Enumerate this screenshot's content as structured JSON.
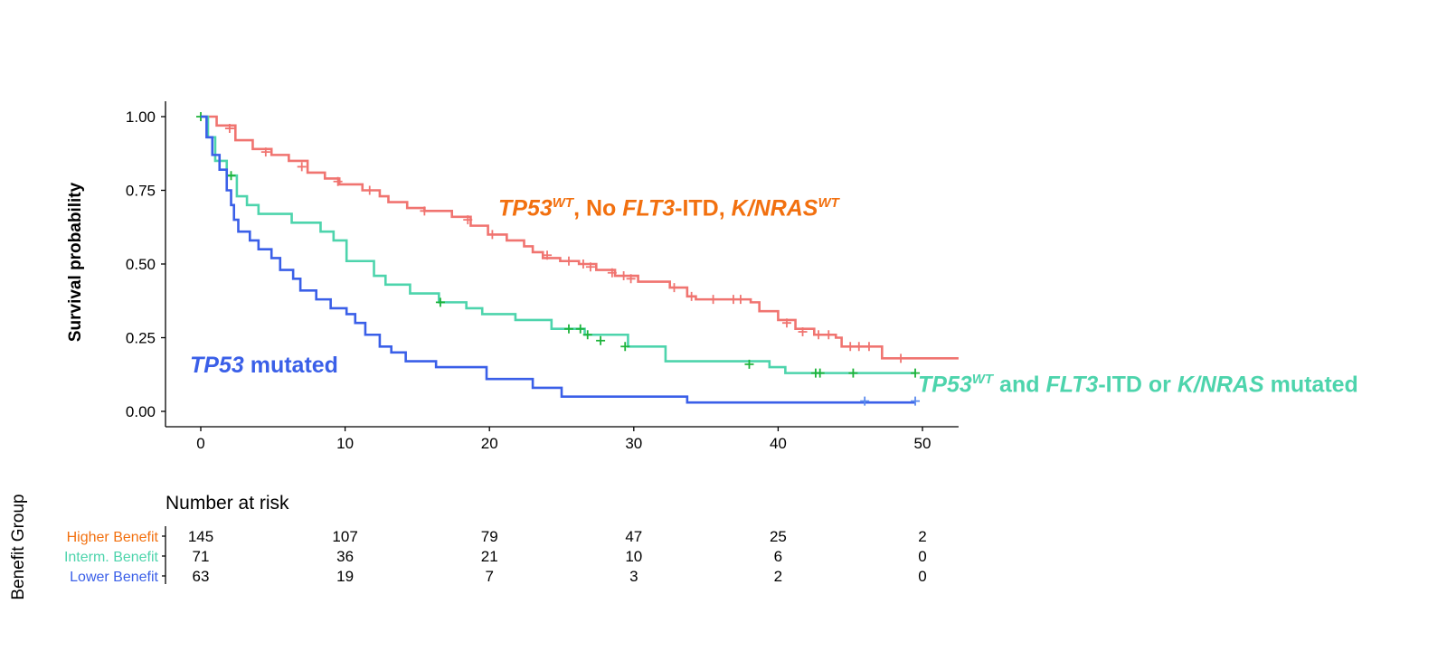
{
  "chart_data": {
    "type": "line",
    "subtype": "kaplan-meier",
    "ylabel": "Survival probability",
    "xlabel": "",
    "xlim": [
      -2,
      52.5
    ],
    "ylim": [
      0,
      1.05
    ],
    "x_ticks": [
      0,
      10,
      20,
      30,
      40,
      50
    ],
    "y_ticks": [
      0,
      0.25,
      0.5,
      0.75,
      1.0
    ],
    "y_tick_labels": [
      "0.00",
      "0.25",
      "0.50",
      "0.75",
      "1.00"
    ],
    "grid": false,
    "series": [
      {
        "name": "Higher Benefit",
        "color": "#F07470",
        "censor_color": "#F07470",
        "steps": [
          [
            0,
            1.0
          ],
          [
            1.1,
            0.97
          ],
          [
            2.4,
            0.92
          ],
          [
            3.6,
            0.89
          ],
          [
            4.9,
            0.87
          ],
          [
            6.1,
            0.85
          ],
          [
            7.4,
            0.81
          ],
          [
            8.6,
            0.79
          ],
          [
            9.6,
            0.77
          ],
          [
            11.2,
            0.75
          ],
          [
            12.4,
            0.73
          ],
          [
            13,
            0.71
          ],
          [
            14.3,
            0.69
          ],
          [
            15.5,
            0.68
          ],
          [
            17.4,
            0.66
          ],
          [
            18.7,
            0.63
          ],
          [
            19.9,
            0.6
          ],
          [
            21.2,
            0.58
          ],
          [
            22.4,
            0.56
          ],
          [
            23,
            0.54
          ],
          [
            23.7,
            0.52
          ],
          [
            24.9,
            0.51
          ],
          [
            26.2,
            0.5
          ],
          [
            27.4,
            0.48
          ],
          [
            28.7,
            0.46
          ],
          [
            30.3,
            0.44
          ],
          [
            32.5,
            0.42
          ],
          [
            33.7,
            0.39
          ],
          [
            34.3,
            0.38
          ],
          [
            38.1,
            0.37
          ],
          [
            38.7,
            0.34
          ],
          [
            40,
            0.31
          ],
          [
            41.2,
            0.28
          ],
          [
            42.5,
            0.26
          ],
          [
            44,
            0.25
          ],
          [
            44.4,
            0.22
          ],
          [
            47.2,
            0.18
          ],
          [
            52.5,
            0.18
          ]
        ],
        "censors": [
          [
            2,
            0.96
          ],
          [
            4.5,
            0.88
          ],
          [
            7,
            0.83
          ],
          [
            9.5,
            0.78
          ],
          [
            11.7,
            0.75
          ],
          [
            15.5,
            0.68
          ],
          [
            18.5,
            0.65
          ],
          [
            20.2,
            0.6
          ],
          [
            24,
            0.53
          ],
          [
            25.5,
            0.51
          ],
          [
            26.5,
            0.5
          ],
          [
            27,
            0.49
          ],
          [
            28.5,
            0.47
          ],
          [
            29.3,
            0.46
          ],
          [
            29.8,
            0.45
          ],
          [
            32.8,
            0.42
          ],
          [
            34,
            0.39
          ],
          [
            35.5,
            0.38
          ],
          [
            36.9,
            0.38
          ],
          [
            37.4,
            0.38
          ],
          [
            40.6,
            0.3
          ],
          [
            41.7,
            0.27
          ],
          [
            42.8,
            0.26
          ],
          [
            43.5,
            0.26
          ],
          [
            45,
            0.22
          ],
          [
            45.6,
            0.22
          ],
          [
            46.3,
            0.22
          ],
          [
            48.5,
            0.18
          ]
        ]
      },
      {
        "name": "Interm. Benefit",
        "color": "#4DD4AC",
        "censor_color": "#1DB33A",
        "steps": [
          [
            0,
            1.0
          ],
          [
            0.5,
            0.93
          ],
          [
            1.0,
            0.85
          ],
          [
            1.8,
            0.8
          ],
          [
            2.5,
            0.73
          ],
          [
            3.2,
            0.7
          ],
          [
            4.0,
            0.67
          ],
          [
            6.3,
            0.64
          ],
          [
            8.3,
            0.61
          ],
          [
            9.2,
            0.58
          ],
          [
            10.1,
            0.51
          ],
          [
            12.0,
            0.46
          ],
          [
            12.8,
            0.43
          ],
          [
            14.5,
            0.4
          ],
          [
            16.5,
            0.37
          ],
          [
            18.4,
            0.35
          ],
          [
            19.5,
            0.33
          ],
          [
            21.8,
            0.31
          ],
          [
            24.3,
            0.28
          ],
          [
            26.6,
            0.26
          ],
          [
            29.6,
            0.22
          ],
          [
            32.2,
            0.17
          ],
          [
            39.4,
            0.15
          ],
          [
            40.5,
            0.13
          ],
          [
            49.5,
            0.13
          ]
        ],
        "censors": [
          [
            0,
            1.0
          ],
          [
            2.1,
            0.8
          ],
          [
            16.6,
            0.37
          ],
          [
            25.5,
            0.28
          ],
          [
            26.3,
            0.28
          ],
          [
            26.8,
            0.26
          ],
          [
            27.7,
            0.24
          ],
          [
            29.4,
            0.22
          ],
          [
            38,
            0.16
          ],
          [
            42.6,
            0.13
          ],
          [
            42.9,
            0.13
          ],
          [
            45.2,
            0.13
          ],
          [
            49.5,
            0.13
          ]
        ]
      },
      {
        "name": "Lower Benefit",
        "color": "#3A5FE8",
        "censor_color": "#5B8BEE",
        "steps": [
          [
            0,
            1.0
          ],
          [
            0.4,
            0.93
          ],
          [
            0.8,
            0.87
          ],
          [
            1.3,
            0.82
          ],
          [
            1.8,
            0.75
          ],
          [
            2.1,
            0.7
          ],
          [
            2.3,
            0.65
          ],
          [
            2.6,
            0.61
          ],
          [
            3.4,
            0.58
          ],
          [
            4.0,
            0.55
          ],
          [
            4.9,
            0.52
          ],
          [
            5.5,
            0.48
          ],
          [
            6.4,
            0.45
          ],
          [
            6.9,
            0.41
          ],
          [
            8.0,
            0.38
          ],
          [
            9.0,
            0.35
          ],
          [
            10.1,
            0.33
          ],
          [
            10.7,
            0.3
          ],
          [
            11.4,
            0.26
          ],
          [
            12.4,
            0.22
          ],
          [
            13.2,
            0.2
          ],
          [
            14.2,
            0.17
          ],
          [
            16.3,
            0.15
          ],
          [
            19.8,
            0.11
          ],
          [
            23.0,
            0.08
          ],
          [
            25,
            0.05
          ],
          [
            33.7,
            0.03
          ],
          [
            49.5,
            0.03
          ]
        ],
        "censors": [
          [
            46,
            0.035
          ],
          [
            49.5,
            0.035
          ]
        ]
      }
    ],
    "annotations": {
      "higher": {
        "parts": [
          "TP53",
          "WT",
          ", No ",
          "FLT3",
          "-ITD, ",
          "K/NRAS",
          "WT"
        ],
        "color": "#F2700F"
      },
      "interm": {
        "parts": [
          "TP53",
          "WT",
          " and ",
          "FLT3",
          "-ITD or ",
          "K/NRAS",
          " mutated"
        ],
        "color": "#4DD4AC"
      },
      "lower": {
        "parts": [
          "TP53",
          " mutated"
        ],
        "color": "#3A5FE8"
      }
    },
    "risk_table": {
      "title": "Number at risk",
      "ylabel": "Benefit Group",
      "times": [
        0,
        10,
        20,
        30,
        40,
        50
      ],
      "rows": [
        {
          "label": "Higher Benefit",
          "color": "#F2700F",
          "counts": [
            "145",
            "107",
            "79",
            "47",
            "25",
            "2"
          ]
        },
        {
          "label": "Interm. Benefit",
          "color": "#4DD4AC",
          "counts": [
            "71",
            "36",
            "21",
            "10",
            "6",
            "0"
          ]
        },
        {
          "label": "Lower Benefit",
          "color": "#3A5FE8",
          "counts": [
            "63",
            "19",
            "7",
            "3",
            "2",
            "0"
          ]
        }
      ]
    }
  }
}
